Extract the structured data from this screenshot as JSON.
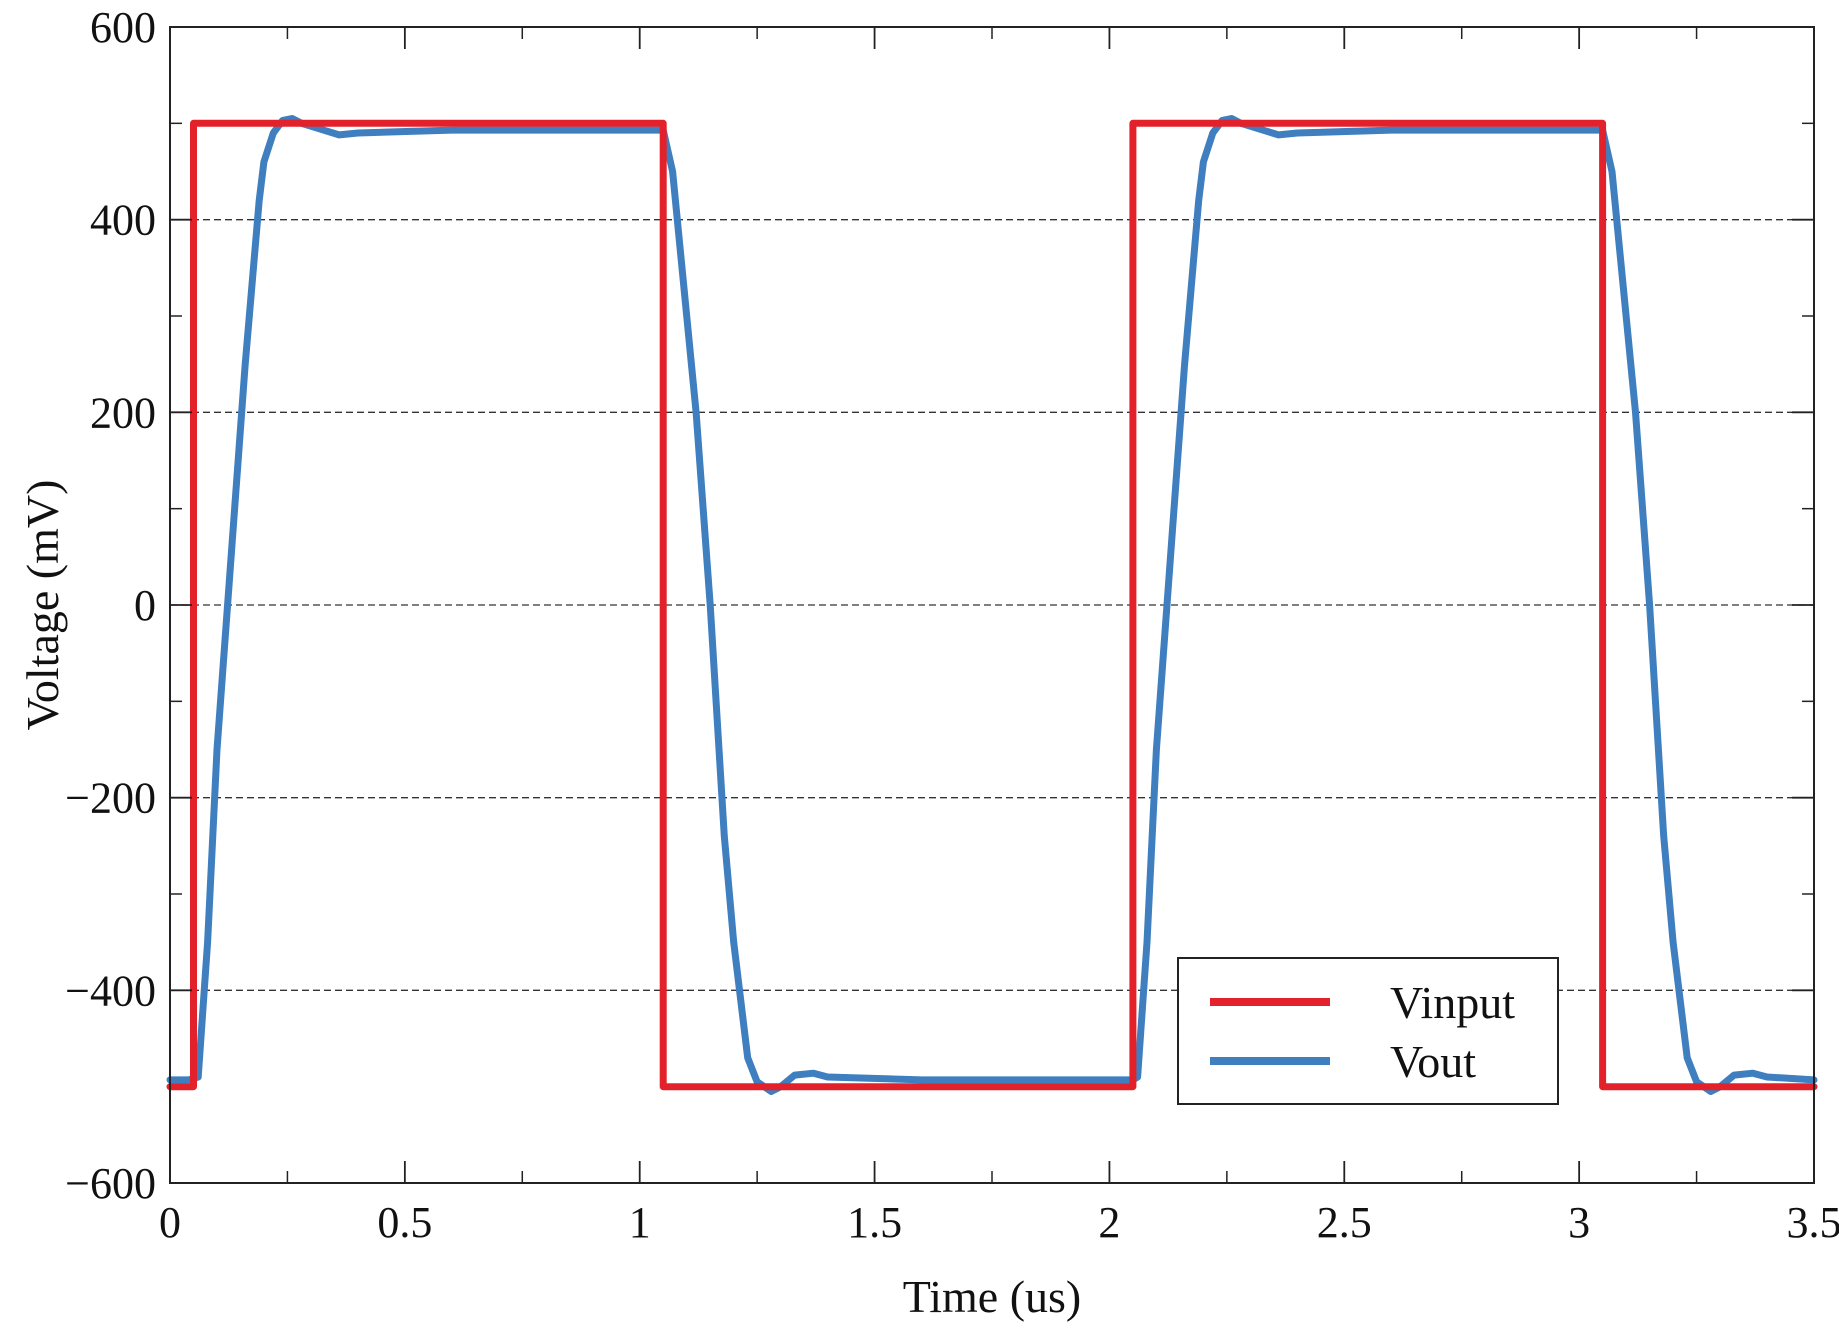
{
  "chart_data": {
    "type": "line",
    "title": "",
    "xlabel": "Time (us)",
    "ylabel": "Voltage (mV)",
    "xlim": [
      0,
      3.5
    ],
    "ylim": [
      -600,
      600
    ],
    "x_ticks": [
      0,
      0.5,
      1,
      1.5,
      2,
      2.5,
      3,
      3.5
    ],
    "x_tick_labels": [
      "0",
      "0.5",
      "1",
      "1.5",
      "2",
      "2.5",
      "3",
      "3.5"
    ],
    "y_ticks": [
      -600,
      -400,
      -200,
      0,
      200,
      400,
      600
    ],
    "y_tick_labels": [
      "−600",
      "−400",
      "−200",
      "0",
      "200",
      "400",
      "600"
    ],
    "grid": "horizontal dashed",
    "legend_position": "bottom-right",
    "series": [
      {
        "name": "Vinput",
        "color": "#e3212b",
        "x": [
          0,
          0.05,
          0.05,
          1.05,
          1.05,
          2.05,
          2.05,
          3.05,
          3.05,
          3.5
        ],
        "y": [
          -500,
          -500,
          500,
          500,
          -500,
          -500,
          500,
          500,
          -500,
          -500
        ]
      },
      {
        "name": "Vout",
        "color": "#3f7fbf",
        "x": [
          0,
          0.04,
          0.06,
          0.08,
          0.1,
          0.13,
          0.16,
          0.19,
          0.2,
          0.22,
          0.24,
          0.26,
          0.28,
          0.3,
          0.36,
          0.4,
          0.6,
          1.0,
          1.05,
          1.07,
          1.1,
          1.12,
          1.15,
          1.18,
          1.2,
          1.23,
          1.25,
          1.28,
          1.3,
          1.33,
          1.37,
          1.4,
          1.6,
          2.05,
          2.06,
          2.08,
          2.1,
          2.13,
          2.16,
          2.19,
          2.2,
          2.22,
          2.24,
          2.26,
          2.28,
          2.3,
          2.36,
          2.4,
          2.6,
          3.0,
          3.05,
          3.07,
          3.1,
          3.12,
          3.15,
          3.18,
          3.2,
          3.23,
          3.25,
          3.28,
          3.3,
          3.33,
          3.37,
          3.4,
          3.5
        ],
        "y": [
          -493,
          -493,
          -490,
          -350,
          -150,
          50,
          250,
          420,
          460,
          490,
          503,
          505,
          500,
          497,
          488,
          490,
          493,
          493,
          493,
          450,
          300,
          200,
          0,
          -240,
          -350,
          -470,
          -495,
          -505,
          -500,
          -488,
          -486,
          -490,
          -493,
          -493,
          -490,
          -350,
          -150,
          50,
          250,
          420,
          460,
          490,
          503,
          505,
          500,
          497,
          488,
          490,
          493,
          493,
          493,
          450,
          300,
          200,
          0,
          -240,
          -350,
          -470,
          -495,
          -505,
          -500,
          -488,
          -486,
          -490,
          -493
        ]
      }
    ]
  }
}
